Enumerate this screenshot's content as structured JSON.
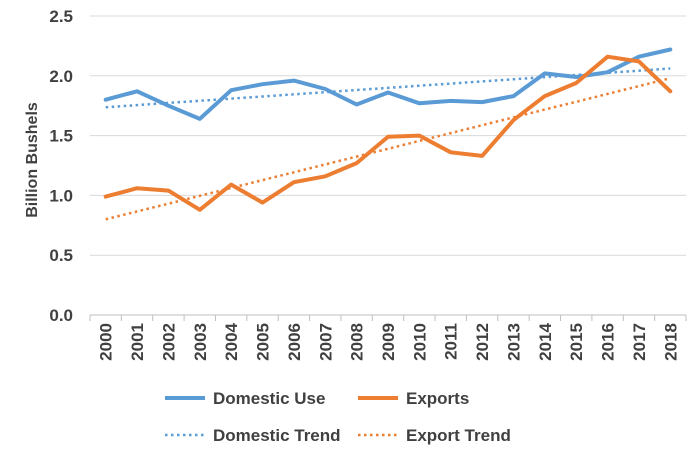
{
  "chart_data": {
    "type": "line",
    "ylabel": "Billion Bushels",
    "xlabel": "",
    "ylim": [
      0,
      2.5
    ],
    "yticks": [
      0.0,
      0.5,
      1.0,
      1.5,
      2.0,
      2.5
    ],
    "ytick_labels": [
      "0.0",
      "0.5",
      "1.0",
      "1.5",
      "2.0",
      "2.5"
    ],
    "grid": true,
    "legend_position": "bottom",
    "categories": [
      "2000",
      "2001",
      "2002",
      "2003",
      "2004",
      "2005",
      "2006",
      "2007",
      "2008",
      "2009",
      "2010",
      "2011",
      "2012",
      "2013",
      "2014",
      "2015",
      "2016",
      "2017",
      "2018"
    ],
    "series": [
      {
        "name": "Domestic Use",
        "style": "solid",
        "color": "#5B9BD5",
        "values": [
          1.8,
          1.87,
          1.75,
          1.64,
          1.88,
          1.93,
          1.96,
          1.89,
          1.76,
          1.86,
          1.77,
          1.79,
          1.78,
          1.83,
          2.02,
          1.99,
          2.03,
          2.16,
          2.22
        ]
      },
      {
        "name": "Exports",
        "style": "solid",
        "color": "#ED7D31",
        "values": [
          0.99,
          1.06,
          1.04,
          0.88,
          1.09,
          0.94,
          1.11,
          1.16,
          1.27,
          1.49,
          1.5,
          1.36,
          1.33,
          1.63,
          1.83,
          1.94,
          2.16,
          2.12,
          1.87
        ]
      },
      {
        "name": "Domestic Trend",
        "style": "dotted",
        "color": "#5B9BD5",
        "values": [
          1.737,
          1.755,
          1.773,
          1.791,
          1.809,
          1.827,
          1.845,
          1.863,
          1.881,
          1.899,
          1.917,
          1.935,
          1.953,
          1.971,
          1.989,
          2.007,
          2.025,
          2.043,
          2.061
        ]
      },
      {
        "name": "Export Trend",
        "style": "dotted",
        "color": "#ED7D31",
        "values": [
          0.8,
          0.866,
          0.931,
          0.997,
          1.062,
          1.128,
          1.193,
          1.259,
          1.324,
          1.39,
          1.456,
          1.521,
          1.587,
          1.652,
          1.718,
          1.783,
          1.849,
          1.914,
          1.98
        ]
      }
    ]
  }
}
